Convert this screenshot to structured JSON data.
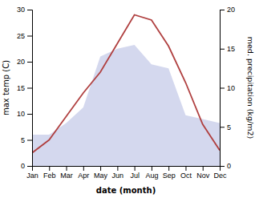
{
  "chart_data": {
    "type": "line",
    "categories": [
      "Jan",
      "Feb",
      "Mar",
      "Apr",
      "May",
      "Jun",
      "Jul",
      "Aug",
      "Sep",
      "Oct",
      "Nov",
      "Dec"
    ],
    "series": [
      {
        "type": "area",
        "color": "#b0b8e0",
        "axis": "y2",
        "values": [
          4.0,
          4.0,
          5.5,
          7.5,
          14.0,
          15.0,
          15.5,
          13.0,
          12.5,
          6.5,
          6.0,
          5.5
        ]
      },
      {
        "type": "line",
        "color": "#b04040",
        "values": [
          2.5,
          5.0,
          9.5,
          14.0,
          18.0,
          23.5,
          29.0,
          28.0,
          23.0,
          16.0,
          8.0,
          3.0
        ]
      }
    ],
    "xlabel": "date (month)",
    "ylabel": "max temp (C)",
    "y2label": "med. precipitation (kg/m2)",
    "ylim": [
      0,
      30
    ],
    "yticks": [
      0,
      5,
      10,
      15,
      20,
      25,
      30
    ],
    "y2lim": [
      0,
      20
    ],
    "y2ticks": [
      0,
      5,
      10,
      15,
      20
    ],
    "grid": false
  }
}
